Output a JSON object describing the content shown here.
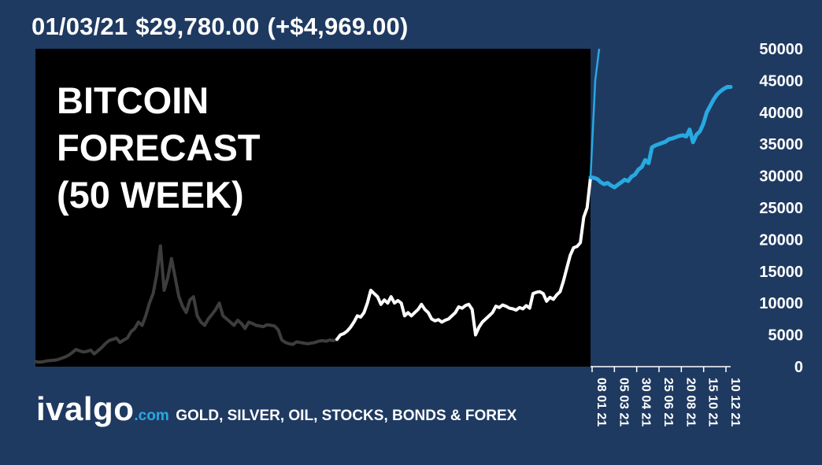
{
  "header": {
    "date": "01/03/21",
    "price": "$29,780.00",
    "change": "(+$4,969.00)"
  },
  "title_lines": [
    "BITCOIN",
    "FORECAST",
    "(50 WEEK)"
  ],
  "brand": {
    "logo": "ivalgo",
    "domain": ".com",
    "tagline": "GOLD, SILVER, OIL, STOCKS, BONDS & FOREX"
  },
  "colors": {
    "background": "#1f3a61",
    "plot_background": "#000000",
    "history_old": "#3d3d3d",
    "history_recent": "#ffffff",
    "forecast": "#27a9e1"
  },
  "chart_data": {
    "type": "line",
    "ylim": [
      0,
      50000
    ],
    "y_ticks": [
      "0",
      "5000",
      "10000",
      "15000",
      "20000",
      "25000",
      "30000",
      "35000",
      "40000",
      "45000",
      "50000"
    ],
    "x_tick_labels": [
      "08 01 21",
      "05 03 21",
      "30 04 21",
      "25 06 21",
      "20 08 21",
      "15 10 21",
      "10 12 21"
    ],
    "grid": false,
    "legend": "none",
    "series": [
      {
        "role": "history_old",
        "values": [
          800,
          700,
          750,
          900,
          950,
          1000,
          1100,
          1300,
          1500,
          1800,
          2200,
          2700,
          2500,
          2300,
          2400,
          2600,
          2000,
          2500,
          3000,
          3600,
          4100,
          4300,
          4500,
          3800,
          4200,
          4500,
          5500,
          6000,
          7000,
          6500,
          8000,
          10000,
          11500,
          14500,
          19000,
          12000,
          14000,
          17000,
          14000,
          11000,
          9500,
          8500,
          10500,
          11000,
          8000,
          7000,
          6500,
          7500,
          8200,
          9000,
          10000,
          8000,
          7500,
          7000,
          6500,
          7300,
          6800,
          6000,
          7000,
          6800,
          6500,
          6400,
          6300,
          6600,
          6500,
          6400,
          5800,
          4200,
          3800,
          3600,
          3500,
          3900,
          3800,
          3700,
          3600,
          3700,
          3800,
          4000,
          4100,
          4000,
          4200,
          4100,
          4300
        ]
      },
      {
        "role": "history_recent",
        "values": [
          4300,
          5000,
          5200,
          5600,
          6200,
          7000,
          8000,
          7800,
          8500,
          10000,
          12000,
          11500,
          11000,
          9800,
          10500,
          10000,
          11000,
          10000,
          10400,
          10000,
          8000,
          8500,
          8000,
          8500,
          9000,
          9800,
          9000,
          8500,
          7500,
          7200,
          7400,
          7000,
          7300,
          7500,
          8000,
          8500,
          9400,
          9200,
          9600,
          9800,
          9000,
          5000,
          6200,
          7000,
          7500,
          8000,
          8500,
          9500,
          9300,
          9700,
          9500,
          9200,
          9100,
          8900,
          9300,
          9100,
          9600,
          9200,
          11500,
          11700,
          11800,
          11500,
          10300,
          10900,
          10600,
          11300,
          11800,
          13500,
          15500,
          17500,
          18700,
          18900,
          19500,
          23500,
          25000,
          29780
        ]
      },
      {
        "role": "forecast",
        "values": [
          29780,
          29700,
          29500,
          29000,
          28700,
          28900,
          28500,
          28200,
          28600,
          29000,
          29400,
          29200,
          29900,
          30200,
          31000,
          31400,
          32500,
          32000,
          34500,
          34800,
          35000,
          35200,
          35400,
          35800,
          35900,
          36100,
          36300,
          36400,
          36200,
          37300,
          35300,
          36500,
          37000,
          38200,
          40000,
          41000,
          42000,
          42800,
          43300,
          43700,
          44000,
          44000
        ]
      },
      {
        "role": "forecast_jump",
        "values": [
          29780,
          45000,
          51000
        ]
      }
    ]
  }
}
